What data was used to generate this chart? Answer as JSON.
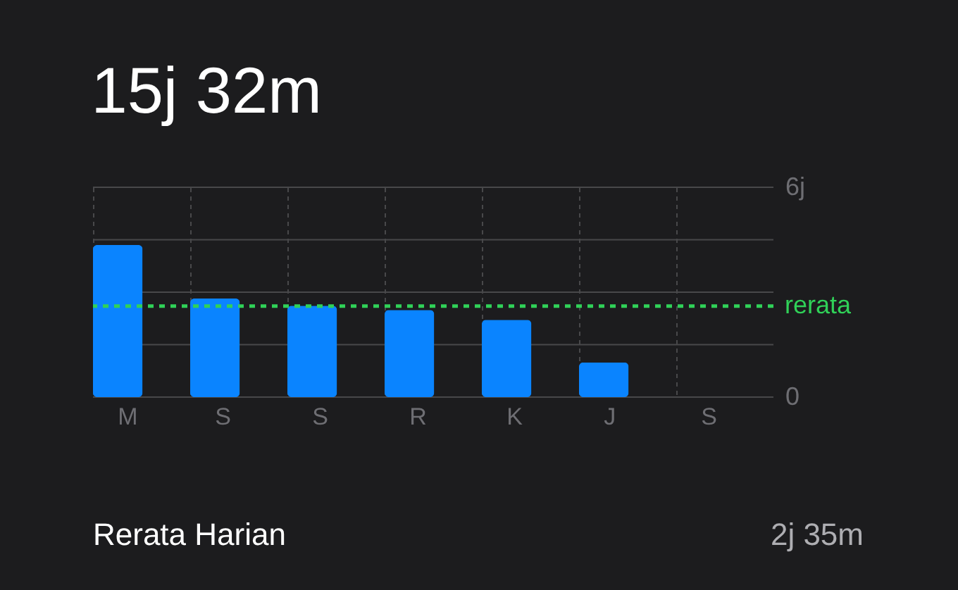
{
  "chart_data": {
    "type": "bar",
    "title": "15j 32m",
    "categories": [
      "M",
      "S",
      "S",
      "R",
      "K",
      "J",
      "S"
    ],
    "values": [
      4.35,
      2.82,
      2.61,
      2.49,
      2.21,
      0.99,
      null
    ],
    "color": "#0a84ff",
    "ylim": [
      0,
      6
    ],
    "yticks": [
      0,
      {
        "value": 1.5,
        "label": null
      },
      {
        "value": 3,
        "label": null
      },
      {
        "value": 4.5,
        "label": null
      },
      {
        "value": 6,
        "label": "6j"
      }
    ],
    "grid": true,
    "ref_lines": [
      {
        "axis": "y",
        "value": 2.6,
        "label": "rerata",
        "color": "#30d158",
        "line_style": "dashed"
      }
    ],
    "annotations": [
      "Rerata Harian",
      "2j 35m"
    ]
  }
}
